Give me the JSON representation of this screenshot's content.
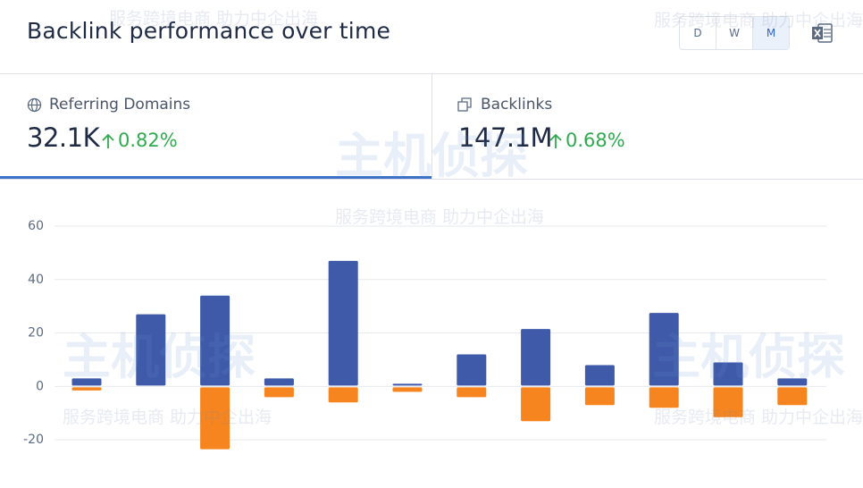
{
  "header": {
    "title": "Backlink performance over time",
    "periods": [
      "D",
      "W",
      "M"
    ]
  },
  "tabs": [
    {
      "label": "Referring Domains",
      "value": "32.1K",
      "change": "0.82%"
    },
    {
      "label": "Backlinks",
      "value": "147.1M",
      "change": "0.68%"
    }
  ],
  "watermark": {
    "text": "服务跨境电商 助力中企出海",
    "logo": "主机侦探"
  },
  "chart_data": {
    "type": "bar",
    "categories": [
      null,
      null,
      null,
      null,
      null,
      null,
      null,
      null,
      null,
      null,
      null,
      null
    ],
    "series": [
      {
        "color": "#3e5aa8",
        "values": [
          3,
          27,
          34,
          3,
          47,
          1,
          12,
          21.5,
          8,
          27.5,
          9,
          3
        ]
      },
      {
        "color": "#f6841f",
        "values": [
          -1.5,
          0,
          -23.5,
          -4,
          -6,
          -2,
          -4,
          -13,
          -7,
          -8,
          -11.5,
          -7
        ]
      }
    ],
    "ylim": [
      -38,
      66
    ],
    "yticks": [
      -20,
      0,
      20,
      40,
      60
    ],
    "grid": true
  }
}
